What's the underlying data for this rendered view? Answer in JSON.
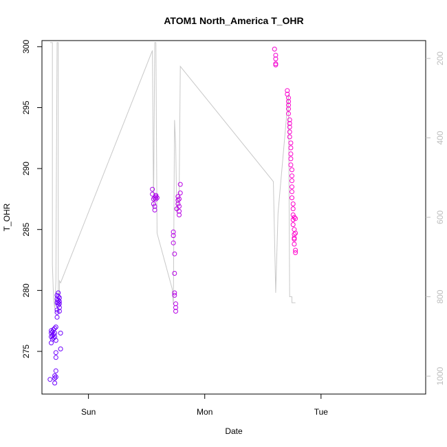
{
  "chart_data": {
    "type": "scatter",
    "title": "ATOM1 North_America T_OHR",
    "xlabel": "Date",
    "ylabel": "T_OHR",
    "x_unit": "days",
    "xlim": [
      -0.4,
      2.9
    ],
    "ylim": [
      271.5,
      300.5
    ],
    "y2lim": [
      1045,
      155
    ],
    "x_ticks": [
      {
        "value": 0,
        "label": "Sun"
      },
      {
        "value": 1,
        "label": "Mon"
      },
      {
        "value": 2,
        "label": "Tue"
      }
    ],
    "y_ticks": [
      275,
      280,
      285,
      290,
      295,
      300
    ],
    "y2_ticks": [
      200,
      400,
      600,
      800,
      1000
    ],
    "color_start": "#6a00ff",
    "color_end": "#ff00cc",
    "line_color": "#c8c8c8",
    "points": [
      {
        "x": -0.33,
        "y": 272.7
      },
      {
        "x": -0.32,
        "y": 275.7
      },
      {
        "x": -0.32,
        "y": 276.2
      },
      {
        "x": -0.32,
        "y": 276.5
      },
      {
        "x": -0.32,
        "y": 276.7
      },
      {
        "x": -0.31,
        "y": 276.0
      },
      {
        "x": -0.31,
        "y": 276.3
      },
      {
        "x": -0.31,
        "y": 276.6
      },
      {
        "x": -0.3,
        "y": 276.1
      },
      {
        "x": -0.3,
        "y": 276.4
      },
      {
        "x": -0.3,
        "y": 276.8
      },
      {
        "x": -0.29,
        "y": 276.2
      },
      {
        "x": -0.29,
        "y": 276.5
      },
      {
        "x": -0.29,
        "y": 276.9
      },
      {
        "x": -0.29,
        "y": 272.8
      },
      {
        "x": -0.29,
        "y": 272.4
      },
      {
        "x": -0.29,
        "y": 273.0
      },
      {
        "x": -0.28,
        "y": 275.9
      },
      {
        "x": -0.28,
        "y": 274.5
      },
      {
        "x": -0.28,
        "y": 274.9
      },
      {
        "x": -0.28,
        "y": 272.9
      },
      {
        "x": -0.28,
        "y": 273.4
      },
      {
        "x": -0.28,
        "y": 277.0
      },
      {
        "x": -0.27,
        "y": 277.8
      },
      {
        "x": -0.27,
        "y": 278.2
      },
      {
        "x": -0.27,
        "y": 278.4
      },
      {
        "x": -0.27,
        "y": 279.0
      },
      {
        "x": -0.27,
        "y": 279.3
      },
      {
        "x": -0.27,
        "y": 279.6
      },
      {
        "x": -0.26,
        "y": 279.8
      },
      {
        "x": -0.26,
        "y": 279.5
      },
      {
        "x": -0.26,
        "y": 279.2
      },
      {
        "x": -0.26,
        "y": 279.0
      },
      {
        "x": -0.26,
        "y": 278.8
      },
      {
        "x": -0.25,
        "y": 278.6
      },
      {
        "x": -0.25,
        "y": 279.4
      },
      {
        "x": -0.25,
        "y": 279.1
      },
      {
        "x": -0.25,
        "y": 278.3
      },
      {
        "x": -0.25,
        "y": 278.9
      },
      {
        "x": -0.24,
        "y": 276.5
      },
      {
        "x": -0.24,
        "y": 275.2
      },
      {
        "x": 0.55,
        "y": 288.3
      },
      {
        "x": 0.55,
        "y": 287.9
      },
      {
        "x": 0.56,
        "y": 287.5
      },
      {
        "x": 0.56,
        "y": 287.1
      },
      {
        "x": 0.57,
        "y": 286.9
      },
      {
        "x": 0.57,
        "y": 286.6
      },
      {
        "x": 0.57,
        "y": 287.6
      },
      {
        "x": 0.58,
        "y": 287.8
      },
      {
        "x": 0.58,
        "y": 287.5
      },
      {
        "x": 0.58,
        "y": 287.7
      },
      {
        "x": 0.59,
        "y": 287.6
      },
      {
        "x": 0.73,
        "y": 284.8
      },
      {
        "x": 0.73,
        "y": 284.5
      },
      {
        "x": 0.73,
        "y": 283.9
      },
      {
        "x": 0.74,
        "y": 283.0
      },
      {
        "x": 0.74,
        "y": 281.4
      },
      {
        "x": 0.74,
        "y": 279.8
      },
      {
        "x": 0.74,
        "y": 279.6
      },
      {
        "x": 0.75,
        "y": 278.9
      },
      {
        "x": 0.75,
        "y": 278.6
      },
      {
        "x": 0.75,
        "y": 278.3
      },
      {
        "x": 0.76,
        "y": 286.7
      },
      {
        "x": 0.77,
        "y": 287.1
      },
      {
        "x": 0.77,
        "y": 287.4
      },
      {
        "x": 0.77,
        "y": 287.7
      },
      {
        "x": 0.78,
        "y": 286.5
      },
      {
        "x": 0.78,
        "y": 286.2
      },
      {
        "x": 0.78,
        "y": 286.9
      },
      {
        "x": 0.78,
        "y": 287.5
      },
      {
        "x": 0.79,
        "y": 288.0
      },
      {
        "x": 0.79,
        "y": 288.7
      },
      {
        "x": 1.6,
        "y": 299.8
      },
      {
        "x": 1.61,
        "y": 299.3
      },
      {
        "x": 1.61,
        "y": 299.0
      },
      {
        "x": 1.61,
        "y": 298.6
      },
      {
        "x": 1.61,
        "y": 298.5
      },
      {
        "x": 1.71,
        "y": 296.4
      },
      {
        "x": 1.71,
        "y": 296.1
      },
      {
        "x": 1.72,
        "y": 295.8
      },
      {
        "x": 1.72,
        "y": 295.5
      },
      {
        "x": 1.72,
        "y": 295.2
      },
      {
        "x": 1.72,
        "y": 294.9
      },
      {
        "x": 1.72,
        "y": 294.5
      },
      {
        "x": 1.73,
        "y": 294.0
      },
      {
        "x": 1.73,
        "y": 293.7
      },
      {
        "x": 1.73,
        "y": 293.4
      },
      {
        "x": 1.73,
        "y": 293.0
      },
      {
        "x": 1.73,
        "y": 292.6
      },
      {
        "x": 1.74,
        "y": 292.1
      },
      {
        "x": 1.74,
        "y": 291.7
      },
      {
        "x": 1.74,
        "y": 291.2
      },
      {
        "x": 1.74,
        "y": 290.8
      },
      {
        "x": 1.74,
        "y": 290.3
      },
      {
        "x": 1.75,
        "y": 289.9
      },
      {
        "x": 1.75,
        "y": 289.4
      },
      {
        "x": 1.75,
        "y": 289.0
      },
      {
        "x": 1.75,
        "y": 288.5
      },
      {
        "x": 1.75,
        "y": 288.1
      },
      {
        "x": 1.75,
        "y": 287.6
      },
      {
        "x": 1.76,
        "y": 287.1
      },
      {
        "x": 1.76,
        "y": 286.7
      },
      {
        "x": 1.76,
        "y": 286.2
      },
      {
        "x": 1.76,
        "y": 285.8
      },
      {
        "x": 1.76,
        "y": 285.4
      },
      {
        "x": 1.77,
        "y": 285.0
      },
      {
        "x": 1.77,
        "y": 284.6
      },
      {
        "x": 1.77,
        "y": 284.2
      },
      {
        "x": 1.77,
        "y": 283.8
      },
      {
        "x": 1.78,
        "y": 283.3
      },
      {
        "x": 1.78,
        "y": 283.1
      },
      {
        "x": 1.77,
        "y": 286.0
      },
      {
        "x": 1.78,
        "y": 285.9
      },
      {
        "x": 1.78,
        "y": 284.7
      },
      {
        "x": 1.77,
        "y": 284.3
      }
    ],
    "line": [
      {
        "x": -0.33,
        "y": 160
      },
      {
        "x": -0.31,
        "y": 160
      },
      {
        "x": -0.31,
        "y": 720
      },
      {
        "x": -0.3,
        "y": 805
      },
      {
        "x": -0.29,
        "y": 830
      },
      {
        "x": -0.28,
        "y": 760
      },
      {
        "x": -0.27,
        "y": 160
      },
      {
        "x": -0.26,
        "y": 160
      },
      {
        "x": -0.26,
        "y": 780
      },
      {
        "x": -0.25,
        "y": 800
      },
      {
        "x": -0.25,
        "y": 760
      },
      {
        "x": -0.24,
        "y": 765
      },
      {
        "x": 0.55,
        "y": 180
      },
      {
        "x": 0.56,
        "y": 580
      },
      {
        "x": 0.57,
        "y": 160
      },
      {
        "x": 0.58,
        "y": 160
      },
      {
        "x": 0.59,
        "y": 640
      },
      {
        "x": 0.72,
        "y": 780
      },
      {
        "x": 0.73,
        "y": 820
      },
      {
        "x": 0.74,
        "y": 355
      },
      {
        "x": 0.75,
        "y": 420
      },
      {
        "x": 0.76,
        "y": 590
      },
      {
        "x": 0.78,
        "y": 550
      },
      {
        "x": 0.79,
        "y": 220
      },
      {
        "x": 1.59,
        "y": 510
      },
      {
        "x": 1.61,
        "y": 790
      },
      {
        "x": 1.63,
        "y": 590
      },
      {
        "x": 1.72,
        "y": 290
      },
      {
        "x": 1.73,
        "y": 800
      },
      {
        "x": 1.75,
        "y": 800
      },
      {
        "x": 1.75,
        "y": 815
      },
      {
        "x": 1.78,
        "y": 815
      }
    ]
  }
}
